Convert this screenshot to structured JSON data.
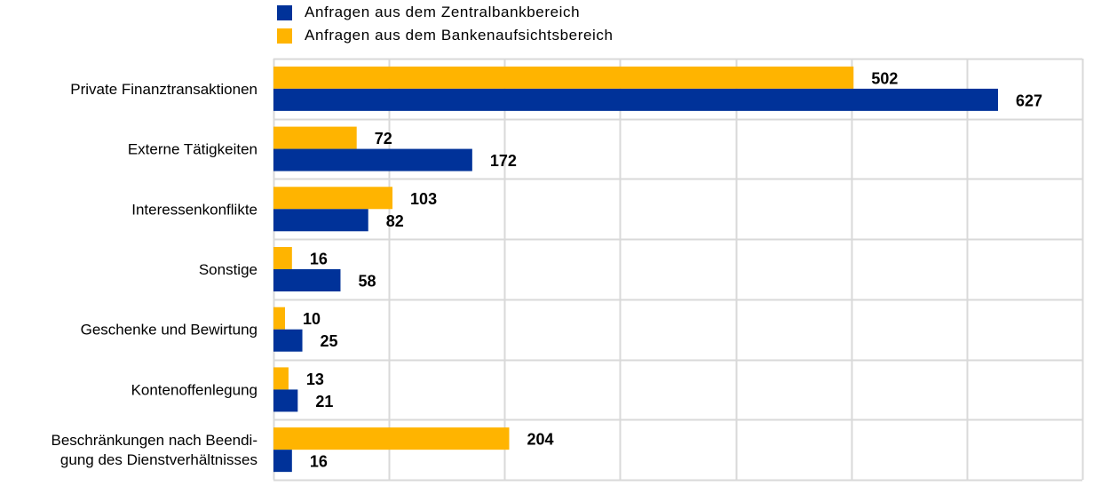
{
  "chart_data": {
    "type": "bar",
    "orientation": "horizontal",
    "categories": [
      [
        "Private Finanztransaktionen"
      ],
      [
        "Externe Tätigkeiten"
      ],
      [
        "Interessenkonflikte"
      ],
      [
        "Sonstige"
      ],
      [
        "Geschenke und Bewirtung"
      ],
      [
        "Kontenoffenlegung"
      ],
      [
        "Beschränkungen nach Beendi-",
        "gung des Dienstverhältnisses"
      ]
    ],
    "series": [
      {
        "name": "Anfragen aus dem Zentralbankbereich",
        "color": "#003299",
        "values": [
          627,
          172,
          82,
          58,
          25,
          21,
          16
        ]
      },
      {
        "name": "Anfragen aus dem Bankenaufsichtsbereich",
        "color": "#FFB400",
        "values": [
          502,
          72,
          103,
          16,
          10,
          13,
          204
        ]
      }
    ],
    "xlim": [
      0,
      700
    ],
    "grid": true,
    "legend": "top-left",
    "title": "",
    "xlabel": "",
    "ylabel": ""
  }
}
